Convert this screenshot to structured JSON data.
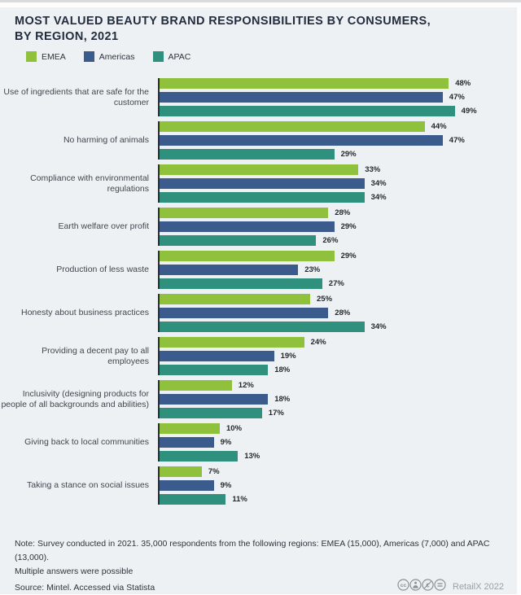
{
  "header": {
    "title_line1": "MOST VALUED BEAUTY BRAND RESPONSIBILITIES BY CONSUMERS,",
    "title_line2": "BY REGION, 2021"
  },
  "legend": [
    {
      "label": "EMEA",
      "color": "#8fc13c"
    },
    {
      "label": "Americas",
      "color": "#3c5b8d"
    },
    {
      "label": "APAC",
      "color": "#30907e"
    }
  ],
  "chart_data": {
    "type": "bar",
    "orientation": "horizontal",
    "title": "Most valued beauty brand responsibilities by consumers, by region, 2021",
    "unit": "%",
    "xlim": [
      0,
      55
    ],
    "grid": false,
    "legend_position": "top-left",
    "value_labels": true,
    "categories": [
      "Use of ingredients that are safe for the customer",
      "No harming of animals",
      "Compliance with environmental regulations",
      "Earth welfare over profit",
      "Production of less waste",
      "Honesty about business practices",
      "Providing a decent pay to all employees",
      "Inclusivity (designing products for people of all backgrounds and abilities)",
      "Giving back to local communities",
      "Taking a stance on social issues"
    ],
    "series": [
      {
        "name": "EMEA",
        "color": "#8fc13c",
        "values": [
          48,
          44,
          33,
          28,
          29,
          25,
          24,
          12,
          10,
          7
        ]
      },
      {
        "name": "Americas",
        "color": "#3c5b8d",
        "values": [
          47,
          47,
          34,
          29,
          23,
          28,
          19,
          18,
          9,
          9
        ]
      },
      {
        "name": "APAC",
        "color": "#30907e",
        "values": [
          49,
          29,
          34,
          26,
          27,
          34,
          18,
          17,
          13,
          11
        ]
      }
    ]
  },
  "footer": {
    "note_line1": "Note: Survey conducted in 2021. 35,000 respondents from the following regions: EMEA (15,000), Americas (7,000) and APAC (13,000).",
    "note_line2": "Multiple answers were possible",
    "source": "Source: Mintel. Accessed via Statista",
    "credit": "RetailX 2022",
    "license_icons": [
      {
        "name": "cc-icon",
        "kind": "cc"
      },
      {
        "name": "cc-by-icon",
        "kind": "by"
      },
      {
        "name": "cc-nc-icon",
        "kind": "nc"
      },
      {
        "name": "cc-nd-icon",
        "kind": "nd"
      }
    ]
  }
}
